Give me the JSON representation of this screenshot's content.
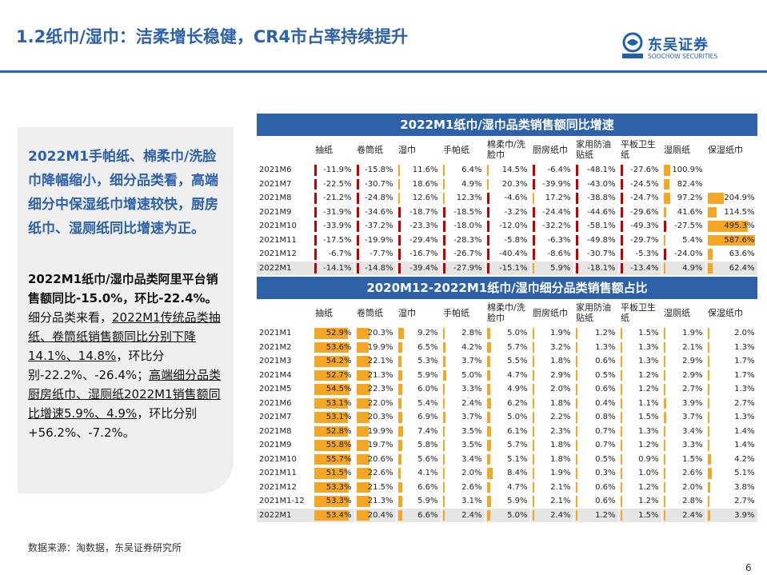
{
  "title": "1.2纸巾/湿巾：洁柔增长稳健，CR4市占率持续提升",
  "logo": {
    "cn": "东吴证券",
    "en": "SOOCHOW SECURITIES",
    "mark": "SCS"
  },
  "left": {
    "p1": "2022M1手帕纸、棉柔巾/洗脸巾降幅缩小，细分品类看，高端细分中保湿纸巾增速较快，厨房纸巾、湿厕纸同比增速为正。",
    "p2_bold": "2022M1纸巾/湿巾品类阿里平台销售额同比-15.0%，环比-22.4%。",
    "p2_a": "细分品类来看，",
    "p2_u1": "2022M1传统品类抽纸、卷筒纸销售额同比分别下降14.1%、14.8%",
    "p2_b": "，环比分别-22.2%、-26.4%；",
    "p2_u2": "高端细分品类厨房纸巾、湿厕纸2022M1销售额同比增速5.9%、4.9%",
    "p2_c": "，环比分别+56.2%、-7.2%。"
  },
  "source": "数据来源：淘数据，东吴证券研究所",
  "page_number": "6",
  "colors": {
    "title_blue": "#2e62a8",
    "neg_bar": "#c00000",
    "pos_bar": "#f5a623",
    "share_bar": "#f5a623"
  },
  "table1": {
    "title": "2022M1纸巾/湿巾品类销售额同比增速",
    "headers": [
      "抽纸",
      "卷筒纸",
      "湿巾",
      "手帕纸",
      "棉柔巾/洗脸巾",
      "厨房纸巾",
      "家用防油贴纸",
      "平板卫生纸",
      "湿厕纸",
      "保湿纸巾"
    ],
    "rows": [
      {
        "label": "2021M6",
        "values": [
          -11.9,
          -15.8,
          11.6,
          6.4,
          14.5,
          -6.4,
          -48.1,
          -27.6,
          100.9,
          null
        ]
      },
      {
        "label": "2021M7",
        "values": [
          -22.5,
          -30.7,
          18.6,
          4.9,
          20.3,
          -39.9,
          -43.0,
          -24.5,
          82.4,
          null
        ]
      },
      {
        "label": "2021M8",
        "values": [
          -21.2,
          -24.8,
          12.6,
          12.3,
          -4.6,
          17.2,
          -38.8,
          -24.7,
          97.2,
          204.9
        ]
      },
      {
        "label": "2021M9",
        "values": [
          -31.9,
          -34.6,
          -18.7,
          -18.5,
          -3.2,
          -24.4,
          -44.6,
          -29.6,
          41.6,
          114.5
        ]
      },
      {
        "label": "2021M10",
        "values": [
          -33.9,
          -37.2,
          -23.3,
          -18.0,
          -12.0,
          -32.2,
          -58.1,
          -49.3,
          -27.5,
          495.3
        ]
      },
      {
        "label": "2021M11",
        "values": [
          -17.5,
          -19.9,
          -29.4,
          -28.3,
          -5.8,
          -6.3,
          -49.8,
          -29.7,
          5.4,
          587.6
        ]
      },
      {
        "label": "2021M12",
        "values": [
          -6.7,
          -7.7,
          -16.7,
          -26.7,
          -40.4,
          -8.6,
          -30.7,
          -5.3,
          -24.0,
          63.6
        ]
      },
      {
        "label": "2022M1",
        "values": [
          -14.1,
          -14.8,
          -39.4,
          -27.9,
          -15.1,
          5.9,
          -18.1,
          -13.4,
          4.9,
          62.4
        ]
      }
    ]
  },
  "table2": {
    "title": "2020M12-2022M1纸巾/湿巾细分品类销售额占比",
    "headers": [
      "抽纸",
      "卷筒纸",
      "湿巾",
      "手帕纸",
      "棉柔巾/洗脸巾",
      "厨房纸巾",
      "家用防油贴纸",
      "平板卫生纸",
      "湿厕纸",
      "保湿纸巾"
    ],
    "rows": [
      {
        "label": "2021M1",
        "values": [
          52.9,
          20.3,
          9.2,
          2.8,
          5.0,
          1.9,
          1.2,
          1.5,
          1.9,
          2.0
        ]
      },
      {
        "label": "2021M2",
        "values": [
          53.6,
          19.9,
          6.5,
          4.2,
          5.7,
          3.2,
          1.3,
          1.3,
          2.1,
          1.3
        ]
      },
      {
        "label": "2021M3",
        "values": [
          54.2,
          22.1,
          5.3,
          3.7,
          5.5,
          1.8,
          0.6,
          1.3,
          2.9,
          1.7
        ]
      },
      {
        "label": "2021M4",
        "values": [
          52.7,
          21.3,
          5.9,
          5.0,
          4.7,
          2.9,
          0.5,
          1.2,
          2.9,
          1.7
        ]
      },
      {
        "label": "2021M5",
        "values": [
          54.5,
          22.3,
          6.0,
          3.3,
          4.9,
          2.0,
          0.6,
          1.2,
          2.7,
          1.3
        ]
      },
      {
        "label": "2021M6",
        "values": [
          53.1,
          22.0,
          5.4,
          2.4,
          6.2,
          1.8,
          0.4,
          1.1,
          3.9,
          2.7
        ]
      },
      {
        "label": "2021M7",
        "values": [
          53.1,
          20.3,
          6.9,
          3.7,
          5.0,
          2.2,
          0.8,
          1.5,
          3.7,
          1.3
        ]
      },
      {
        "label": "2021M8",
        "values": [
          52.8,
          19.9,
          7.4,
          3.5,
          6.1,
          2.3,
          0.7,
          1.3,
          3.4,
          1.4
        ]
      },
      {
        "label": "2021M9",
        "values": [
          55.8,
          19.7,
          5.8,
          3.5,
          5.7,
          1.8,
          0.7,
          1.2,
          3.3,
          1.4
        ]
      },
      {
        "label": "2021M10",
        "values": [
          55.7,
          20.6,
          5.6,
          3.4,
          5.1,
          1.8,
          0.5,
          0.9,
          1.5,
          4.2
        ]
      },
      {
        "label": "2021M11",
        "values": [
          51.5,
          22.6,
          4.1,
          2.0,
          8.4,
          1.9,
          0.3,
          1.0,
          2.6,
          5.1
        ]
      },
      {
        "label": "2021M12",
        "values": [
          53.3,
          21.5,
          6.6,
          2.6,
          4.7,
          2.1,
          0.6,
          1.2,
          2.0,
          3.8
        ]
      },
      {
        "label": "2021M1-12",
        "values": [
          53.3,
          21.3,
          5.9,
          3.1,
          5.9,
          2.1,
          0.6,
          1.2,
          2.8,
          2.7
        ]
      },
      {
        "label": "2022M1",
        "values": [
          53.4,
          20.4,
          6.6,
          2.4,
          5.0,
          2.4,
          1.2,
          1.5,
          2.4,
          3.9
        ]
      }
    ]
  }
}
